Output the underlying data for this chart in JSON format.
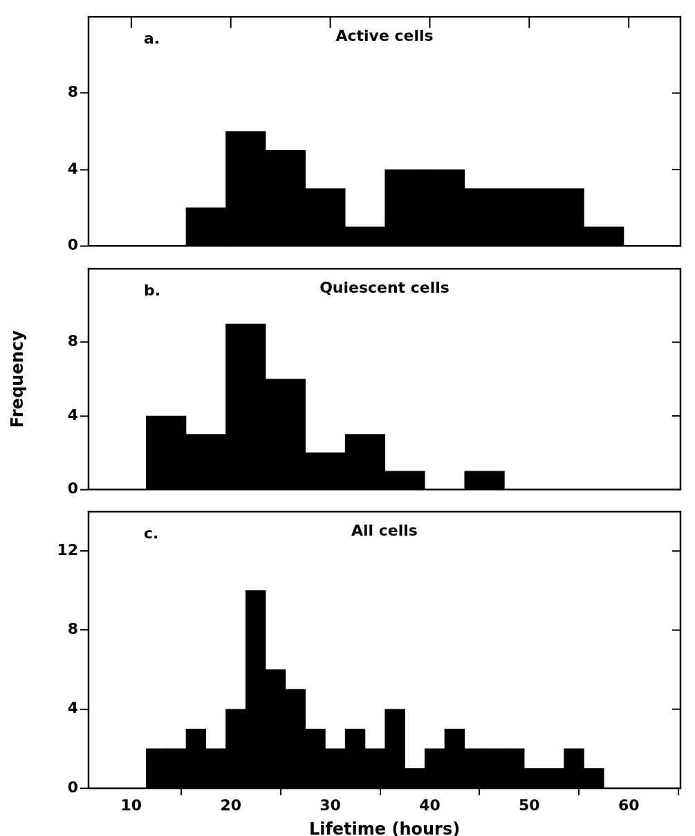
{
  "chart_data": [
    {
      "type": "histogram",
      "title": "Active cells",
      "annotations": [
        "a."
      ],
      "bins": [
        15.5,
        19.5,
        23.5,
        27.5,
        31.5,
        35.5,
        39.5,
        43.5,
        47.5,
        51.5,
        55.5,
        59.5
      ],
      "values": [
        2,
        6,
        5,
        3,
        1,
        4,
        4,
        3,
        3,
        3,
        1
      ],
      "color": "#000000",
      "xlim": [
        5.7,
        65.2
      ],
      "xticks": [
        10,
        20,
        30,
        40,
        50,
        60
      ],
      "ylim": [
        0,
        12
      ],
      "yticks": [
        0,
        4,
        8
      ],
      "tick_labels": "y",
      "legend": false
    },
    {
      "type": "histogram",
      "title": "Quiescent cells",
      "ylabel": "Frequency",
      "annotations": [
        "b."
      ],
      "bins": [
        11.5,
        15.5,
        19.5,
        23.5,
        27.5,
        31.5,
        35.5,
        39.5,
        43.5,
        47.5
      ],
      "values": [
        4,
        3,
        9,
        6,
        2,
        3,
        1,
        0,
        1
      ],
      "color": "#000000",
      "xlim": [
        5.7,
        65.2
      ],
      "xticks": [
        10,
        20,
        30,
        40,
        50,
        60
      ],
      "ylim": [
        0,
        12
      ],
      "yticks": [
        0,
        4,
        8
      ],
      "tick_labels": "y",
      "legend": false
    },
    {
      "type": "histogram",
      "title": "All cells",
      "xlabel": "Lifetime (hours)",
      "annotations": [
        "c."
      ],
      "bins": [
        11.5,
        13.5,
        15.5,
        17.5,
        19.5,
        21.5,
        23.5,
        25.5,
        27.5,
        29.5,
        31.5,
        33.5,
        35.5,
        37.5,
        39.5,
        41.5,
        43.5,
        45.5,
        47.5,
        49.5,
        51.5,
        53.5,
        55.5,
        57.5
      ],
      "values": [
        2,
        2,
        3,
        2,
        4,
        10,
        6,
        5,
        3,
        2,
        3,
        2,
        4,
        1,
        2,
        3,
        2,
        2,
        2,
        1,
        1,
        2,
        1
      ],
      "color": "#000000",
      "xlim": [
        5.7,
        65.2
      ],
      "xticks": [
        10,
        20,
        30,
        40,
        50,
        60
      ],
      "ylim": [
        0,
        14
      ],
      "yticks": [
        0,
        4,
        8,
        12
      ],
      "legend": false
    }
  ]
}
